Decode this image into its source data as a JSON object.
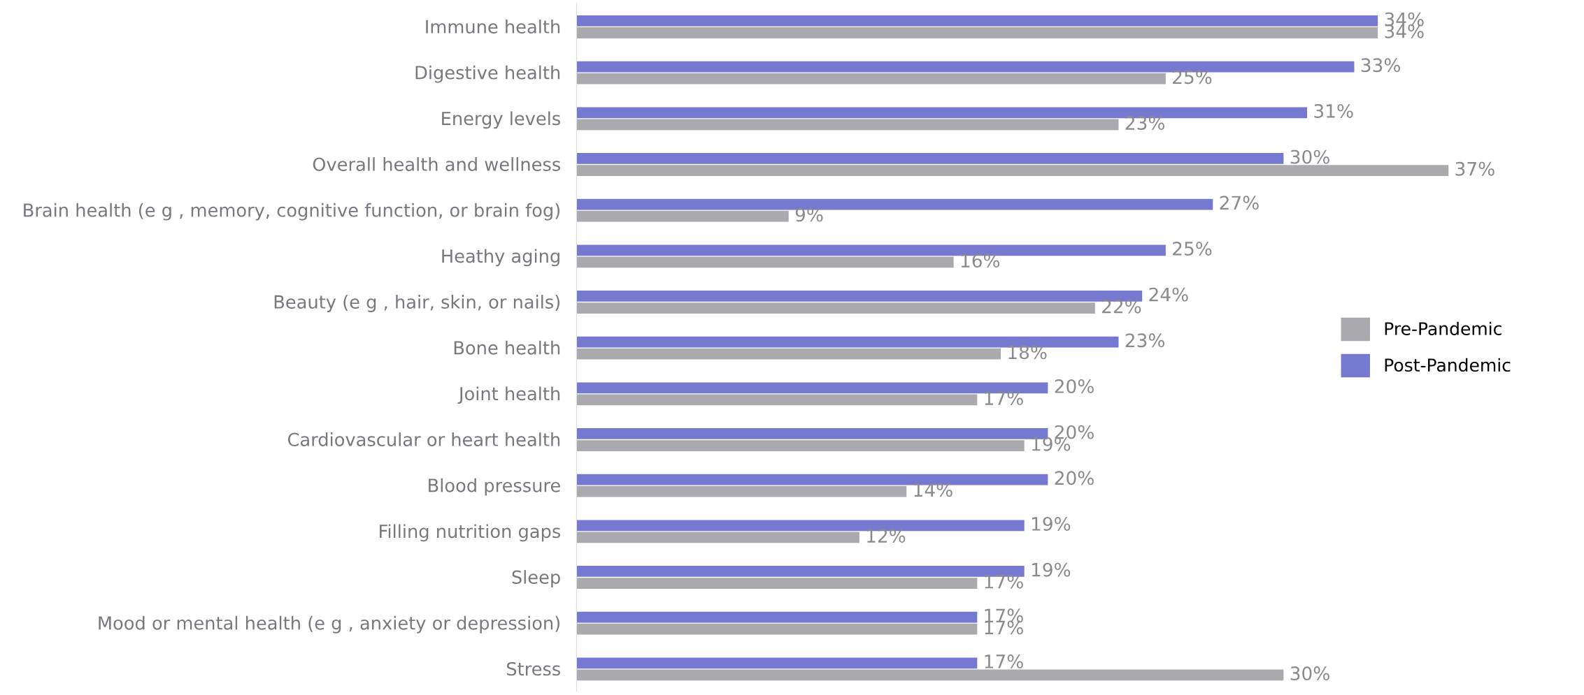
{
  "chart_data": {
    "type": "bar",
    "orientation": "horizontal",
    "legend": "center right",
    "grid": false,
    "categories": [
      "Immune health",
      "Digestive health",
      "Energy levels",
      "Overall health and wellness",
      "Brain health (e g , memory, cognitive function, or brain fog)",
      "Heathy aging",
      "Beauty (e g , hair, skin, or nails)",
      "Bone health",
      "Joint health",
      "Cardiovascular or heart health",
      "Blood pressure",
      "Filling nutrition gaps",
      "Sleep",
      "Mood or mental health (e g , anxiety or depression)",
      "Stress"
    ],
    "series": [
      {
        "name": "Pre-Pandemic",
        "color": "#a9a9ae",
        "values": [
          34,
          25,
          23,
          37,
          9,
          16,
          22,
          18,
          17,
          19,
          14,
          12,
          17,
          17,
          30
        ],
        "value_labels": [
          "34%",
          "25%",
          "23%",
          "37%",
          "9%",
          "16%",
          "22%",
          "18%",
          "17%",
          "19%",
          "14%",
          "12%",
          "17%",
          "17%",
          "30%"
        ]
      },
      {
        "name": "Post-Pandemic",
        "color": "#7579cf",
        "values": [
          34,
          33,
          31,
          30,
          27,
          25,
          24,
          23,
          20,
          20,
          20,
          19,
          19,
          17,
          17
        ],
        "value_labels": [
          "34%",
          "33%",
          "31%",
          "30%",
          "27%",
          "25%",
          "24%",
          "23%",
          "20%",
          "20%",
          "20%",
          "19%",
          "19%",
          "17%",
          "17%"
        ]
      }
    ]
  }
}
